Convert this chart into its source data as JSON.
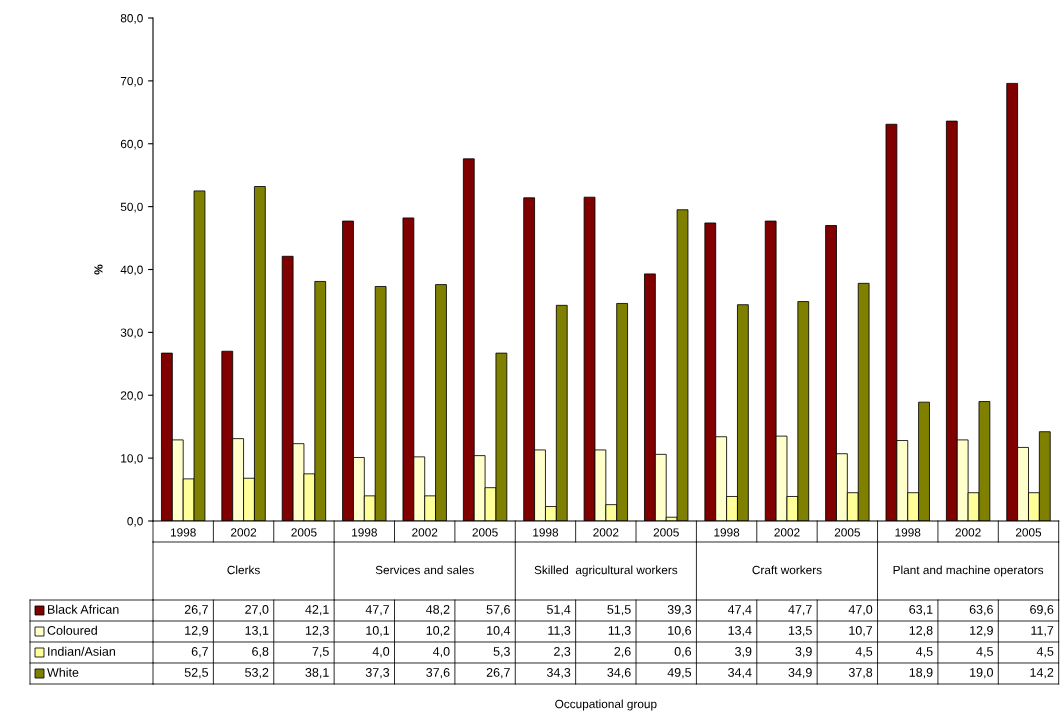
{
  "chart_data": {
    "type": "bar",
    "categories": [
      "1998",
      "2002",
      "2005",
      "1998",
      "2002",
      "2005",
      "1998",
      "2002",
      "2005",
      "1998",
      "2002",
      "2005",
      "1998",
      "2002",
      "2005"
    ],
    "series": [
      {
        "name": "Black African",
        "color": "#800000",
        "values": [
          26.7,
          27.0,
          42.1,
          47.7,
          48.2,
          57.6,
          51.4,
          51.5,
          39.3,
          47.4,
          47.7,
          47.0,
          63.1,
          63.6,
          69.6
        ],
        "value_labels": [
          "26,7",
          "27,0",
          "42,1",
          "47,7",
          "48,2",
          "57,6",
          "51,4",
          "51,5",
          "39,3",
          "47,4",
          "47,7",
          "47,0",
          "63,1",
          "63,6",
          "69,6"
        ]
      },
      {
        "name": "Coloured",
        "color": "#ffffcc",
        "values": [
          12.9,
          13.1,
          12.3,
          10.1,
          10.2,
          10.4,
          11.3,
          11.3,
          10.6,
          13.4,
          13.5,
          10.7,
          12.8,
          12.9,
          11.7
        ],
        "value_labels": [
          "12,9",
          "13,1",
          "12,3",
          "10,1",
          "10,2",
          "10,4",
          "11,3",
          "11,3",
          "10,6",
          "13,4",
          "13,5",
          "10,7",
          "12,8",
          "12,9",
          "11,7"
        ]
      },
      {
        "name": "Indian/Asian",
        "color": "#ffff99",
        "values": [
          6.7,
          6.8,
          7.5,
          4.0,
          4.0,
          5.3,
          2.3,
          2.6,
          0.6,
          3.9,
          3.9,
          4.5,
          4.5,
          4.5,
          4.5
        ],
        "value_labels": [
          "6,7",
          "6,8",
          "7,5",
          "4,0",
          "4,0",
          "5,3",
          "2,3",
          "2,6",
          "0,6",
          "3,9",
          "3,9",
          "4,5",
          "4,5",
          "4,5",
          "4,5"
        ]
      },
      {
        "name": "White",
        "color": "#808000",
        "values": [
          52.5,
          53.2,
          38.1,
          37.3,
          37.6,
          26.7,
          34.3,
          34.6,
          49.5,
          34.4,
          34.9,
          37.8,
          18.9,
          19.0,
          14.2
        ],
        "value_labels": [
          "52,5",
          "53,2",
          "38,1",
          "37,3",
          "37,6",
          "26,7",
          "34,3",
          "34,6",
          "49,5",
          "34,4",
          "34,9",
          "37,8",
          "18,9",
          "19,0",
          "14,2"
        ]
      }
    ],
    "ylim": [
      0,
      80
    ],
    "yticks": [
      {
        "value": 0,
        "label": "0,0"
      },
      {
        "value": 10,
        "label": "10,0"
      },
      {
        "value": 20,
        "label": "20,0"
      },
      {
        "value": 30,
        "label": "30,0"
      },
      {
        "value": 40,
        "label": "40,0"
      },
      {
        "value": 50,
        "label": "50,0"
      },
      {
        "value": 60,
        "label": "60,0"
      },
      {
        "value": 70,
        "label": "70,0"
      },
      {
        "value": 80,
        "label": "80,0"
      }
    ],
    "ylabel": "%",
    "annotations": [
      "Clerks",
      "Services and sales",
      "Skilled  agricultural workers",
      "Craft workers",
      "Plant and machine operators",
      "Occupational group"
    ],
    "legend": "bottom",
    "grid": false
  }
}
